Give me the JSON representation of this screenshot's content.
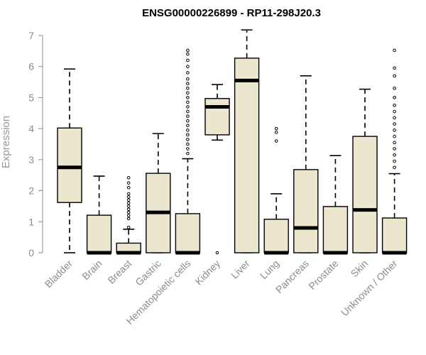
{
  "chart_data": {
    "type": "boxplot",
    "title": "ENSG00000226899 - RP11-298J20.3",
    "ylabel": "Expression",
    "xlabel": "",
    "ylim": [
      0,
      7
    ],
    "yticks": [
      0,
      1,
      2,
      3,
      4,
      5,
      6,
      7
    ],
    "grid": false,
    "box_color": "#ece6cf",
    "line_color": "#000000",
    "categories": [
      "Bladder",
      "Brain",
      "Breast",
      "Gastric",
      "Hematopoietic cells",
      "Kidney",
      "Liver",
      "Lung",
      "Pancreas",
      "Prostate",
      "Skin",
      "Unknown / Other"
    ],
    "boxes": [
      {
        "category": "Bladder",
        "min": 0,
        "q1": 1.62,
        "median": 2.75,
        "q3": 4.02,
        "max": 5.92,
        "outliers": []
      },
      {
        "category": "Brain",
        "min": 0,
        "q1": 0,
        "median": 0,
        "q3": 1.21,
        "max": 2.47,
        "outliers": []
      },
      {
        "category": "Breast",
        "min": 0,
        "q1": 0,
        "median": 0,
        "q3": 0.31,
        "max": 0.76,
        "outliers": [
          0.82,
          1.1,
          1.2,
          1.3,
          1.4,
          1.5,
          1.6,
          1.7,
          1.8,
          1.9,
          2.1,
          2.25,
          2.42
        ]
      },
      {
        "category": "Gastric",
        "min": 0,
        "q1": 0,
        "median": 1.3,
        "q3": 2.56,
        "max": 3.84,
        "outliers": []
      },
      {
        "category": "Hematopoietic cells",
        "min": 0,
        "q1": 0,
        "median": 0,
        "q3": 1.26,
        "max": 3.03,
        "outliers": [
          3.2,
          3.35,
          3.5,
          3.65,
          3.8,
          3.95,
          4.1,
          4.25,
          4.4,
          4.55,
          4.7,
          4.85,
          5.0,
          5.15,
          5.3,
          5.45,
          5.6,
          5.8,
          6.0,
          6.2,
          6.4,
          6.52
        ]
      },
      {
        "category": "Kidney",
        "min": 3.63,
        "q1": 3.8,
        "median": 4.7,
        "q3": 4.97,
        "max": 5.42,
        "outliers": [
          0
        ]
      },
      {
        "category": "Liver",
        "min": 0,
        "q1": 0,
        "median": 5.55,
        "q3": 6.27,
        "max": 7.18,
        "outliers": []
      },
      {
        "category": "Lung",
        "min": 0,
        "q1": 0,
        "median": 0,
        "q3": 1.08,
        "max": 1.9,
        "outliers": [
          3.6,
          3.88,
          4.0
        ]
      },
      {
        "category": "Pancreas",
        "min": 0,
        "q1": 0,
        "median": 0.8,
        "q3": 2.68,
        "max": 5.7,
        "outliers": []
      },
      {
        "category": "Prostate",
        "min": 0,
        "q1": 0,
        "median": 0,
        "q3": 1.49,
        "max": 3.13,
        "outliers": []
      },
      {
        "category": "Skin",
        "min": 0,
        "q1": 0,
        "median": 1.38,
        "q3": 3.75,
        "max": 5.27,
        "outliers": []
      },
      {
        "category": "Unknown / Other",
        "min": 0,
        "q1": 0,
        "median": 0,
        "q3": 1.12,
        "max": 2.55,
        "outliers": [
          2.75,
          2.95,
          3.15,
          3.35,
          3.55,
          3.75,
          3.95,
          4.15,
          4.35,
          4.55,
          4.75,
          5.0,
          5.3,
          5.7,
          5.95,
          6.52
        ]
      }
    ]
  }
}
